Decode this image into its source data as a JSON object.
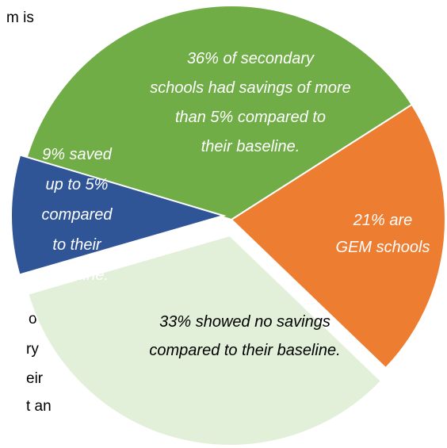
{
  "background_text": [
    "m is",
    "o",
    "ry",
    "eir",
    "t an"
  ],
  "chart_data": {
    "type": "pie",
    "title": "",
    "exploded": true,
    "slices": [
      {
        "value": 36,
        "color": "#70ad47",
        "label_lines": [
          "36% of secondary",
          "schools had savings of more",
          "than 5% compared to",
          "their baseline."
        ]
      },
      {
        "value": 9,
        "color": "#2f5597",
        "label_lines": [
          "9%  saved",
          "up to 5%",
          "compared",
          "to their",
          "baseline."
        ]
      },
      {
        "value": 33,
        "color": "#e2f0d9",
        "label_lines": [
          "33% showed no savings",
          "compared to their baseline."
        ]
      },
      {
        "value": 21,
        "color": "#ed7d31",
        "label_lines": [
          "21% are",
          "GEM schools"
        ]
      }
    ]
  }
}
